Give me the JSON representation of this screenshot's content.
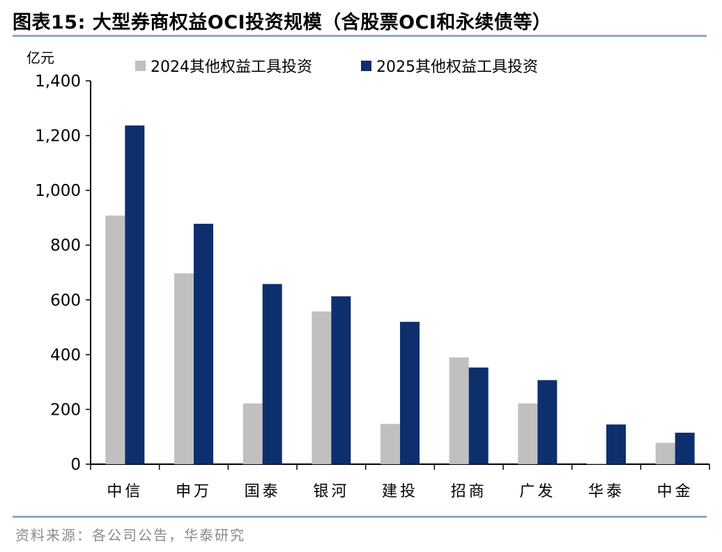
{
  "figure": {
    "title": "图表15:  大型券商权益OCI投资规模（含股票OCI和永续债等）",
    "source": "资料来源：各公司公告，华泰研究"
  },
  "colors": {
    "series_2024": "#c0c0c0",
    "series_2025": "#0d2f6e",
    "axis": "#000000",
    "rule": "#8ea9c9"
  },
  "chart_data": {
    "type": "bar",
    "unit_label": "亿元",
    "categories": [
      "中信",
      "申万",
      "国泰",
      "银河",
      "建投",
      "招商",
      "广发",
      "华泰",
      "中金"
    ],
    "series": [
      {
        "name": "2024其他权益工具投资",
        "values": [
          908,
          697,
          222,
          558,
          147,
          390,
          222,
          3,
          78
        ]
      },
      {
        "name": "2025其他权益工具投资",
        "values": [
          1237,
          878,
          658,
          613,
          520,
          353,
          307,
          145,
          115
        ]
      }
    ],
    "ylim": [
      0,
      1400
    ],
    "yticks": [
      "0",
      "200",
      "400",
      "600",
      "800",
      "1,000",
      "1,200",
      "1,400"
    ],
    "legend_position": "top",
    "grid": false
  }
}
